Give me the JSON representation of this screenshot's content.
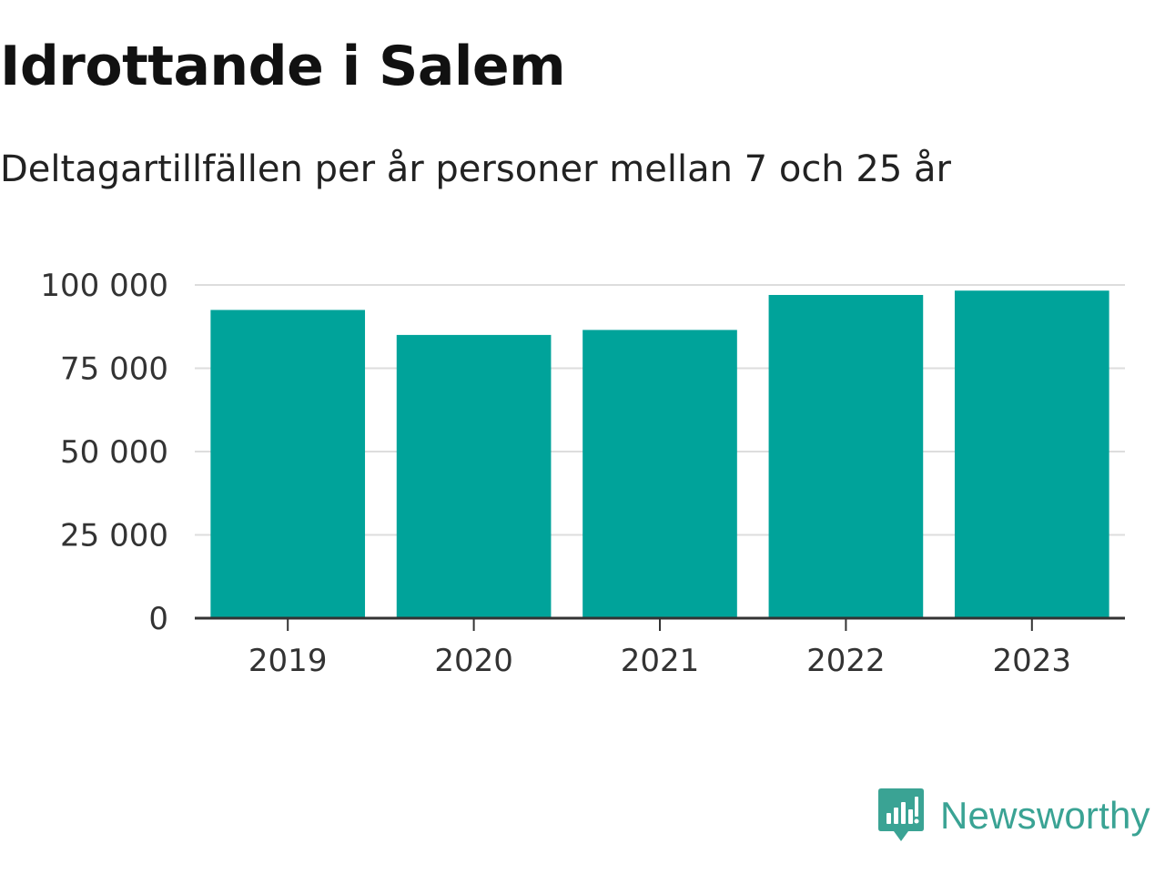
{
  "header": {
    "title": "Idrottande i Salem",
    "subtitle": "Deltagartillfällen per år personer mellan 7 och 25 år"
  },
  "brand": {
    "name": "Newsworthy",
    "color": "#3aa394"
  },
  "colors": {
    "bar": "#00a39a",
    "grid": "#dddddd",
    "axis": "#333333"
  },
  "chart_data": {
    "type": "bar",
    "categories": [
      "2019",
      "2020",
      "2021",
      "2022",
      "2023"
    ],
    "values": [
      92500,
      85000,
      86500,
      97000,
      98300
    ],
    "ylim": [
      0,
      100000
    ],
    "yticks": [
      0,
      25000,
      50000,
      75000,
      100000
    ],
    "ytick_labels": [
      "0",
      "25 000",
      "50 000",
      "75 000",
      "100 000"
    ],
    "grid": true,
    "legend": "none"
  }
}
